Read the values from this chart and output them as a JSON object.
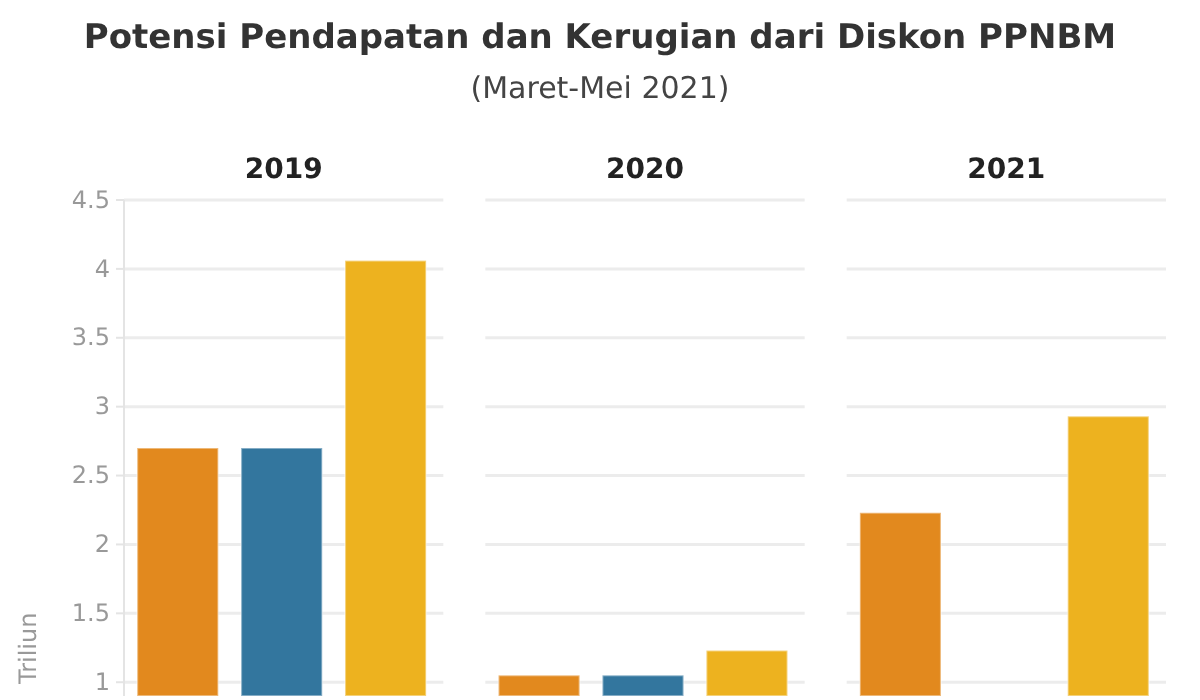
{
  "chart_data": {
    "type": "bar",
    "title": "Potensi Pendapatan dan Kerugian dari Diskon PPNBM",
    "subtitle": "(Maret-Mei 2021)",
    "ylabel": "Triliun",
    "categories": [
      "2019",
      "2020",
      "2021"
    ],
    "series": [
      {
        "color": "#e2891e",
        "values": [
          2.7,
          1.05,
          2.23
        ]
      },
      {
        "color": "#33769e",
        "values": [
          2.7,
          1.05,
          null
        ]
      },
      {
        "color": "#edb21f",
        "values": [
          4.06,
          1.23,
          2.93
        ]
      }
    ],
    "ylim": [
      0.9,
      4.5
    ],
    "yticks": [
      1,
      1.5,
      2,
      2.5,
      3,
      3.5,
      4,
      4.5
    ],
    "grid": "y"
  }
}
